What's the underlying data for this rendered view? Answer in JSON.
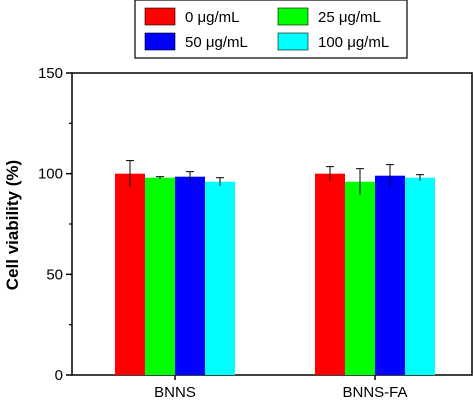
{
  "chart_data": {
    "type": "bar",
    "title": "",
    "xlabel": "",
    "ylabel": "Cell viability (%)",
    "ylim": [
      0,
      150
    ],
    "yticks": [
      0,
      50,
      100,
      150
    ],
    "categories": [
      "BNNS",
      "BNNS-FA"
    ],
    "legend_position": "top",
    "series": [
      {
        "name": "0 μg/mL",
        "color": "#ff0000",
        "values": [
          100,
          100
        ],
        "errors": [
          6.5,
          3.5
        ]
      },
      {
        "name": "25 μg/mL",
        "color": "#00ff00",
        "values": [
          98,
          96
        ],
        "errors": [
          0.5,
          6.5
        ]
      },
      {
        "name": "50 μg/mL",
        "color": "#0000ff",
        "values": [
          98.5,
          99
        ],
        "errors": [
          2.5,
          5.5
        ]
      },
      {
        "name": "100 μg/mL",
        "color": "#00ffff",
        "values": [
          96,
          98
        ],
        "errors": [
          2,
          1.5
        ]
      }
    ]
  }
}
